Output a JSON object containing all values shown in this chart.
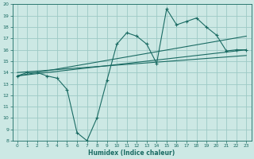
{
  "xlabel": "Humidex (Indice chaleur)",
  "xlim": [
    -0.5,
    23.5
  ],
  "ylim": [
    8,
    20
  ],
  "xticks": [
    0,
    1,
    2,
    3,
    4,
    5,
    6,
    7,
    8,
    9,
    10,
    11,
    12,
    13,
    14,
    15,
    16,
    17,
    18,
    19,
    20,
    21,
    22,
    23
  ],
  "yticks": [
    8,
    9,
    10,
    11,
    12,
    13,
    14,
    15,
    16,
    17,
    18,
    19,
    20
  ],
  "bg_color": "#cce8e4",
  "grid_color": "#9dcac5",
  "line_color": "#1a6b63",
  "curve1_x": [
    0,
    1,
    2,
    3,
    4,
    5,
    6,
    7,
    8,
    9,
    10,
    11,
    12,
    13,
    14,
    15,
    16,
    17,
    18,
    19,
    20,
    21,
    22,
    23
  ],
  "curve1_y": [
    13.7,
    14.0,
    14.0,
    13.7,
    13.5,
    12.5,
    8.7,
    8.0,
    10.0,
    13.3,
    16.5,
    17.5,
    17.2,
    16.5,
    14.8,
    19.6,
    18.2,
    18.5,
    18.8,
    18.0,
    17.3,
    15.9,
    16.0,
    16.0
  ],
  "line1_x": [
    0,
    23
  ],
  "line1_y": [
    13.7,
    17.2
  ],
  "line2_x": [
    0,
    23
  ],
  "line2_y": [
    13.7,
    16.0
  ],
  "line3_x": [
    0,
    23
  ],
  "line3_y": [
    14.0,
    15.5
  ]
}
